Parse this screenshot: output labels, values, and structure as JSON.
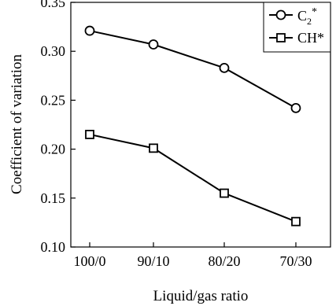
{
  "chart_data": {
    "type": "line",
    "title": "",
    "xlabel": "Liquid/gas ratio",
    "ylabel": "Coefficient of variation",
    "categories": [
      "100/0",
      "90/10",
      "80/20",
      "70/30"
    ],
    "ylim": [
      0.1,
      0.35
    ],
    "yticks": [
      0.1,
      0.15,
      0.2,
      0.25,
      0.3,
      0.35
    ],
    "ytick_labels": [
      "0.10",
      "0.15",
      "0.20",
      "0.25",
      "0.30",
      "0.35"
    ],
    "grid": false,
    "legend_placement": "top-right",
    "series": [
      {
        "key": "c2",
        "name_main": "C",
        "name_sub": "2",
        "name_sup": "*",
        "marker": "circle",
        "values": [
          0.321,
          0.307,
          0.283,
          0.242
        ]
      },
      {
        "key": "ch",
        "name_main": "CH*",
        "marker": "square",
        "values": [
          0.215,
          0.201,
          0.155,
          0.126
        ]
      }
    ]
  }
}
